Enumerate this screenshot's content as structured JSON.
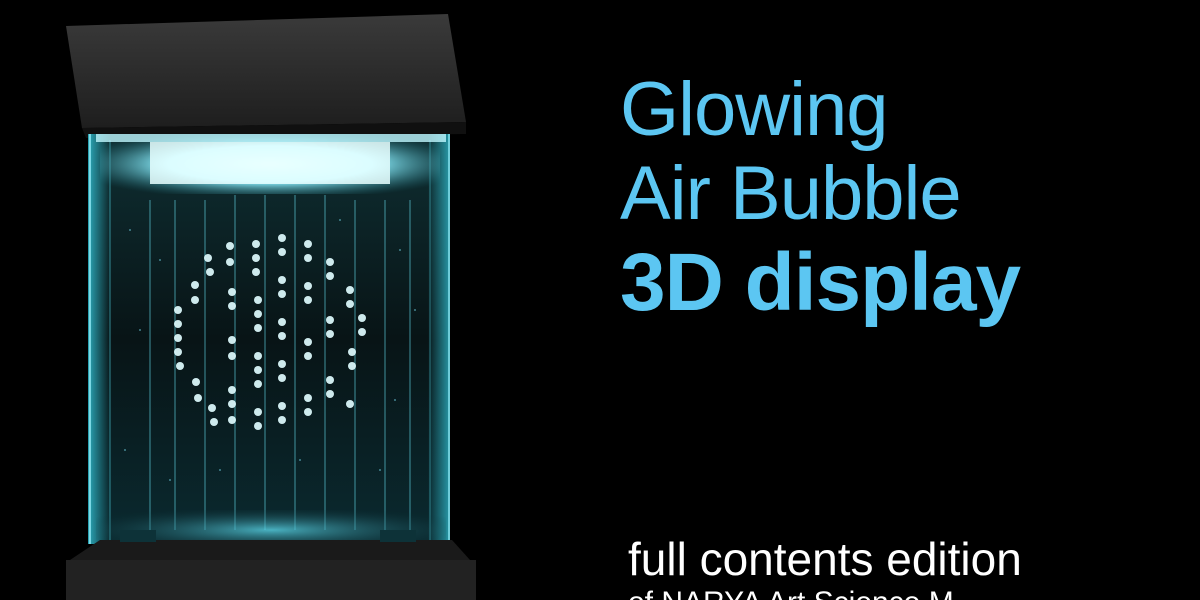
{
  "title": {
    "line1": "Glowing",
    "line2": "Air Bubble",
    "line3": "3D display"
  },
  "subtitle": {
    "line1": "full contents edition",
    "line2": "of NARYA Art Science M"
  },
  "colors": {
    "background": "#000000",
    "title_accent": "#5cc6f2",
    "subtitle_text": "#ffffff",
    "glow": "#7fe9ff"
  }
}
